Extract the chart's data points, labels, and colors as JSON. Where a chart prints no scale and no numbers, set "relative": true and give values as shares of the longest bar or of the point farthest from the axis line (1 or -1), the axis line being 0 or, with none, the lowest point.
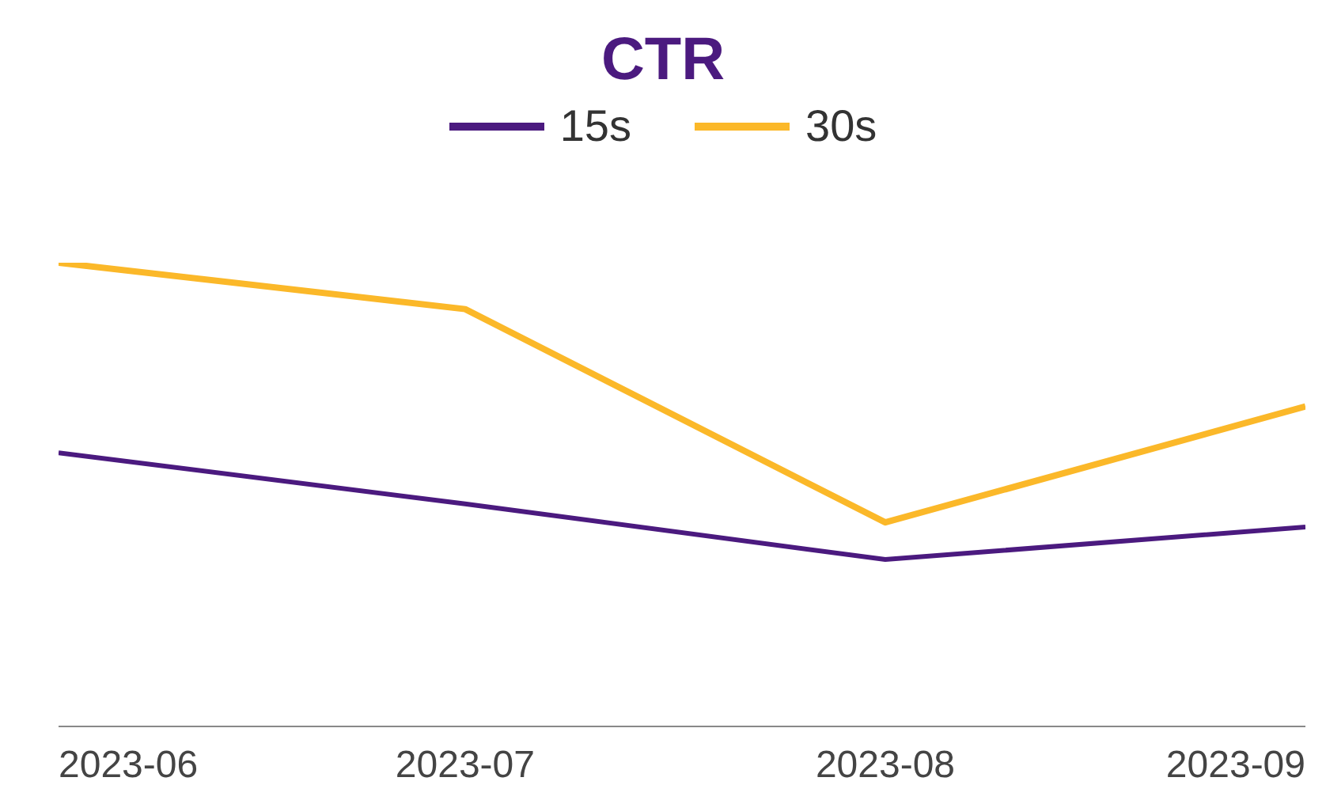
{
  "chart_data": {
    "type": "line",
    "title": "CTR",
    "relative": true,
    "x": [
      "2023-06",
      "2023-07",
      "2023-08",
      "2023-09"
    ],
    "xlim": [
      "2023-06",
      "2023-09"
    ],
    "xticks": [
      "2023-06",
      "2023-07",
      "2023-08",
      "2023-09"
    ],
    "legend": "top",
    "grid": false,
    "marker": "none",
    "line_style": "solid",
    "series": [
      {
        "name": "15s",
        "color": "#4b1a7f",
        "values": [
          0.59,
          0.48,
          0.36,
          0.43
        ]
      },
      {
        "name": "30s",
        "color": "#fbb829",
        "values": [
          1,
          0.9,
          0.44,
          0.69
        ]
      }
    ]
  }
}
